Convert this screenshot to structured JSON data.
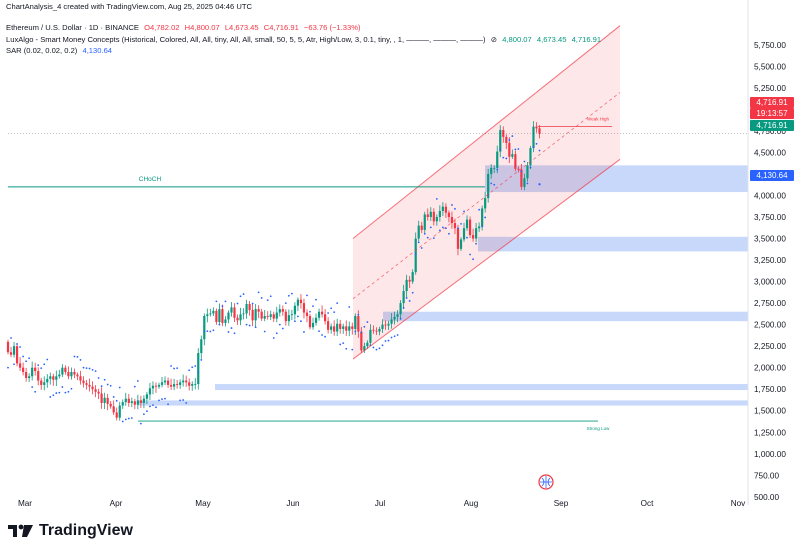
{
  "snapshot_caption": "ChartAnalysis_4 created with TradingView.com, Aug 25, 2025 04:46 UTC",
  "legend": {
    "symbol": "Ethereum / U.S. Dollar · 1D · BINANCE",
    "open": "O4,782.02",
    "high": "H4,800.07",
    "low": "L4,673.45",
    "close": "C4,716.91",
    "change": "−63.76 (−1.33%)",
    "indicator": "LuxAlgo - Smart Money Concepts (Historical, Colored, All, All, tiny, All, All, small, 50, 5, 5, Atr, High/Low, 3, 0.1, tiny, , 1, ———, ———, ———)",
    "indicator_v1": "4,800.07",
    "indicator_v2": "4,673.45",
    "indicator_v3": "4,716.91",
    "sar": "SAR (0.02, 0.02, 0.2)",
    "sar_value": "4,130.64"
  },
  "price_tags": {
    "last_price": "4,716.91",
    "countdown": "19:13:57",
    "close_tag": "4,716.91",
    "sar_tag": "4,130.64"
  },
  "annotations": {
    "choch": "CHoCH",
    "weak_high": "Weak High",
    "strong_low": "Strong Low"
  },
  "logo_text": "TradingView",
  "colors": {
    "up": "#089981",
    "down": "#f23645",
    "blue": "#2962ff",
    "channel": "#f23645",
    "zone": "#9bb8f5"
  },
  "chart_data": {
    "type": "candlestick",
    "symbol": "ETHUSD",
    "timeframe": "1D",
    "y_ticks": [
      "5,750.00",
      "5,500.00",
      "5,250.00",
      "5,000.00",
      "4,750.00",
      "4,500.00",
      "4,250.00",
      "4,000.00",
      "3,750.00",
      "3,500.00",
      "3,250.00",
      "3,000.00",
      "2,750.00",
      "2,500.00",
      "2,250.00",
      "2,000.00",
      "1,750.00",
      "1,500.00",
      "1,250.00",
      "1,000.00",
      "750.00",
      "500.00"
    ],
    "x_ticks": [
      "Mar",
      "Apr",
      "May",
      "Jun",
      "Jul",
      "Aug",
      "Sep",
      "Oct",
      "Nov"
    ],
    "ylim": [
      500,
      5850
    ],
    "closes": [
      2180,
      2150,
      2250,
      2050,
      2000,
      1950,
      1880,
      1900,
      2000,
      1960,
      1850,
      1800,
      1830,
      1870,
      1900,
      1860,
      1900,
      1920,
      2000,
      1950,
      1900,
      1950,
      1920,
      1900,
      1850,
      1820,
      1800,
      1780,
      1750,
      1720,
      1700,
      1590,
      1650,
      1580,
      1550,
      1480,
      1420,
      1560,
      1600,
      1640,
      1590,
      1610,
      1570,
      1620,
      1590,
      1640,
      1690,
      1760,
      1790,
      1780,
      1800,
      1830,
      1850,
      1800,
      1780,
      1810,
      1800,
      1830,
      1850,
      1830,
      1790,
      1810,
      1810,
      2170,
      2330,
      2600,
      2620,
      2630,
      2660,
      2530,
      2680,
      2520,
      2560,
      2640,
      2700,
      2580,
      2550,
      2620,
      2630,
      2740,
      2670,
      2550,
      2680,
      2650,
      2570,
      2600,
      2590,
      2620,
      2570,
      2640,
      2680,
      2650,
      2540,
      2610,
      2620,
      2720,
      2790,
      2750,
      2640,
      2600,
      2470,
      2520,
      2580,
      2650,
      2620,
      2540,
      2440,
      2480,
      2420,
      2510,
      2450,
      2480,
      2430,
      2480,
      2450,
      2600,
      2420,
      2200,
      2250,
      2290,
      2440,
      2430,
      2420,
      2450,
      2500,
      2490,
      2510,
      2560,
      2590,
      2620,
      2750,
      2890,
      3020,
      3000,
      3110,
      3500,
      3650,
      3600,
      3780,
      3750,
      3810,
      3700,
      3750,
      3820,
      3870,
      3800,
      3750,
      3680,
      3620,
      3380,
      3490,
      3620,
      3720,
      3540,
      3500,
      3620,
      3640,
      3850,
      3970,
      4250,
      4320,
      4320,
      4510,
      4760,
      4680,
      4610,
      4450,
      4480,
      4310,
      4300,
      4100,
      4200,
      4350,
      4550,
      4800,
      4780,
      4716.91
    ],
    "sar_value": 4130.64,
    "zones": [
      [
        4040,
        4350
      ],
      [
        3350,
        3520
      ],
      [
        2540,
        2650
      ],
      [
        1740,
        1810
      ],
      [
        1560,
        1620
      ]
    ],
    "choch_level": 4100,
    "weak_high": 4800.07,
    "strong_low": 1380
  }
}
